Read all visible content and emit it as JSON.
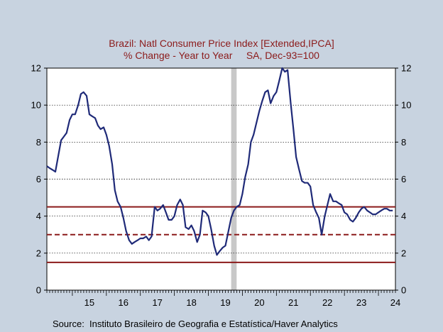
{
  "chart_data": {
    "type": "line",
    "title": "Brazil: Natl Consumer Price Index [Extended,IPCA]",
    "subtitle": "% Change - Year to Year     SA, Dec-93=100",
    "source": "Source:  Instituto Brasileiro de Geografia e Estatística/Haver Analytics",
    "xlabel": "",
    "ylabel": "",
    "xlim": [
      2014.25,
      2024.5
    ],
    "ylim": [
      0,
      12
    ],
    "y_ticks": [
      "0",
      "2",
      "4",
      "6",
      "8",
      "10",
      "12"
    ],
    "x_tick_labels": [
      "15",
      "16",
      "17",
      "18",
      "19",
      "20",
      "21",
      "22",
      "23",
      "24"
    ],
    "grid": "horizontal dotted",
    "recession_shading": [
      2019.67,
      2019.83
    ],
    "reference_lines": [
      {
        "value": 4.5,
        "style": "solid",
        "color": "#8b1a1a"
      },
      {
        "value": 3.0,
        "style": "dashed",
        "color": "#8b1a1a"
      },
      {
        "value": 1.5,
        "style": "solid",
        "color": "#8b1a1a"
      }
    ],
    "series": [
      {
        "color": "#1f2a78",
        "x": [
          2014.25,
          2014.33,
          2014.42,
          2014.5,
          2014.58,
          2014.67,
          2014.75,
          2014.83,
          2014.92,
          2015.0,
          2015.08,
          2015.17,
          2015.25,
          2015.33,
          2015.42,
          2015.5,
          2015.58,
          2015.67,
          2015.75,
          2015.83,
          2015.92,
          2016.0,
          2016.08,
          2016.17,
          2016.25,
          2016.33,
          2016.42,
          2016.5,
          2016.58,
          2016.67,
          2016.75,
          2016.83,
          2016.92,
          2017.0,
          2017.08,
          2017.17,
          2017.25,
          2017.33,
          2017.42,
          2017.5,
          2017.58,
          2017.67,
          2017.75,
          2017.83,
          2017.92,
          2018.0,
          2018.08,
          2018.17,
          2018.25,
          2018.33,
          2018.42,
          2018.5,
          2018.58,
          2018.67,
          2018.75,
          2018.83,
          2018.92,
          2019.0,
          2019.08,
          2019.17,
          2019.25,
          2019.33,
          2019.42,
          2019.5,
          2019.58,
          2019.67,
          2019.75,
          2019.83,
          2019.92,
          2020.0,
          2020.08,
          2020.17,
          2020.25,
          2020.33,
          2020.42,
          2020.5,
          2020.58,
          2020.67,
          2020.75,
          2020.83,
          2020.92,
          2021.0,
          2021.08,
          2021.17,
          2021.25,
          2021.33,
          2021.42,
          2021.5,
          2021.58,
          2021.67,
          2021.75,
          2021.83,
          2021.92,
          2022.0,
          2022.08,
          2022.17,
          2022.25,
          2022.33,
          2022.42,
          2022.5,
          2022.58,
          2022.67,
          2022.75,
          2022.83,
          2022.92,
          2023.0,
          2023.08,
          2023.17,
          2023.25,
          2023.33,
          2023.42,
          2023.5,
          2023.58,
          2023.67,
          2023.75,
          2023.83,
          2023.92,
          2024.0,
          2024.08,
          2024.17,
          2024.25,
          2024.33,
          2024.42
        ],
        "y": [
          6.7,
          6.6,
          6.5,
          6.4,
          7.2,
          8.1,
          8.3,
          8.5,
          9.2,
          9.5,
          9.5,
          10.0,
          10.6,
          10.7,
          10.5,
          9.5,
          9.4,
          9.3,
          8.9,
          8.7,
          8.8,
          8.4,
          7.8,
          6.8,
          5.4,
          4.8,
          4.5,
          3.9,
          3.2,
          2.7,
          2.5,
          2.6,
          2.7,
          2.8,
          2.8,
          2.9,
          2.7,
          2.9,
          4.5,
          4.3,
          4.4,
          4.6,
          4.2,
          3.8,
          3.8,
          4.0,
          4.6,
          4.9,
          4.6,
          3.4,
          3.3,
          3.5,
          3.2,
          2.6,
          3.0,
          4.3,
          4.2,
          4.0,
          3.3,
          2.4,
          1.9,
          2.1,
          2.3,
          2.4,
          3.1,
          3.9,
          4.3,
          4.5,
          4.6,
          5.2,
          6.1,
          6.8,
          8.0,
          8.4,
          9.1,
          9.7,
          10.2,
          10.7,
          10.8,
          10.1,
          10.5,
          10.7,
          11.3,
          12.0,
          11.8,
          11.9,
          10.1,
          8.7,
          7.2,
          6.5,
          5.9,
          5.8,
          5.8,
          5.6,
          4.6,
          4.2,
          3.9,
          3.0,
          4.0,
          4.6,
          5.2,
          4.8,
          4.8,
          4.7,
          4.6,
          4.2,
          4.1,
          3.8,
          3.7,
          3.9,
          4.2,
          4.4,
          4.5,
          4.3,
          4.2,
          4.1,
          4.1,
          4.2,
          4.3,
          4.4,
          4.4,
          4.3,
          4.3
        ]
      }
    ]
  }
}
